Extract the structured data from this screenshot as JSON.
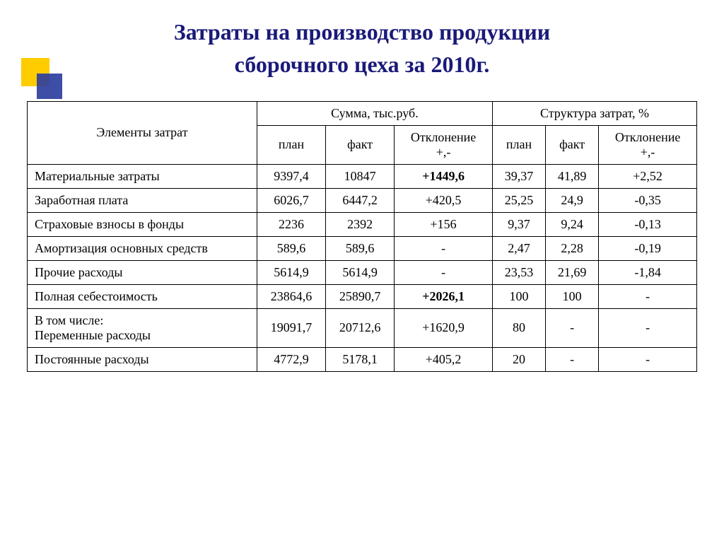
{
  "title_line1": "Затраты на производство продукции",
  "title_line2": "сборочного цеха за 2010г.",
  "title_color": "#1a1a7a",
  "title_fontsize": 32,
  "decor": {
    "yellow": "#ffcc00",
    "blue": "#2e3e9e"
  },
  "table": {
    "header": {
      "elements": "Элементы затрат",
      "sum_group": "Сумма, тыс.руб.",
      "struct_group": "Структура затрат, %",
      "plan": "план",
      "fact": "факт",
      "dev": "Отклонение\n+,-"
    },
    "columns": [
      "label",
      "sum_plan",
      "sum_fact",
      "sum_dev",
      "str_plan",
      "str_fact",
      "str_dev"
    ],
    "col_alignment": [
      "left",
      "center",
      "center",
      "center",
      "center",
      "center",
      "center"
    ],
    "rows": [
      {
        "label": "Материальные затраты",
        "sum_plan": "9397,4",
        "sum_fact": "10847",
        "sum_dev": "+1449,6",
        "sum_dev_bold": true,
        "str_plan": "39,37",
        "str_fact": "41,89",
        "str_dev": "+2,52"
      },
      {
        "label": "Заработная плата",
        "sum_plan": "6026,7",
        "sum_fact": "6447,2",
        "sum_dev": "+420,5",
        "str_plan": "25,25",
        "str_fact": "24,9",
        "str_dev": "-0,35"
      },
      {
        "label": "Страховые взносы в фонды",
        "sum_plan": "2236",
        "sum_fact": "2392",
        "sum_dev": "+156",
        "str_plan": "9,37",
        "str_fact": "9,24",
        "str_dev": "-0,13"
      },
      {
        "label": "Амортизация основных средств",
        "sum_plan": "589,6",
        "sum_fact": "589,6",
        "sum_dev": "-",
        "str_plan": "2,47",
        "str_fact": "2,28",
        "str_dev": "-0,19"
      },
      {
        "label": "Прочие расходы",
        "sum_plan": "5614,9",
        "sum_fact": "5614,9",
        "sum_dev": "-",
        "str_plan": "23,53",
        "str_fact": "21,69",
        "str_dev": "-1,84"
      },
      {
        "label": "Полная себестоимость",
        "sum_plan": "23864,6",
        "sum_fact": "25890,7",
        "sum_dev": "+2026,1",
        "sum_dev_bold": true,
        "str_plan": "100",
        "str_fact": "100",
        "str_dev": "-"
      },
      {
        "label": "В том числе:\nПеременные расходы",
        "sum_plan": "19091,7",
        "sum_fact": "20712,6",
        "sum_dev": "+1620,9",
        "str_plan": "80",
        "str_fact": "-",
        "str_dev": "-"
      },
      {
        "label": "Постоянные расходы",
        "sum_plan": "4772,9",
        "sum_fact": "5178,1",
        "sum_dev": "+405,2",
        "str_plan": "20",
        "str_fact": "-",
        "str_dev": "-"
      }
    ]
  }
}
